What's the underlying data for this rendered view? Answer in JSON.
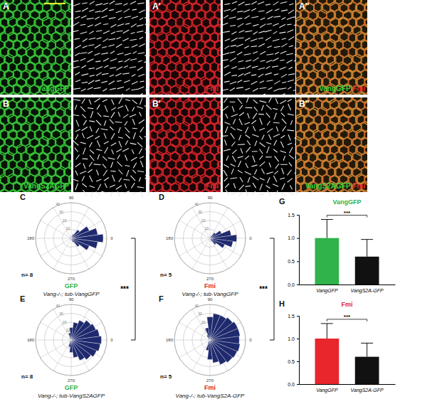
{
  "panels": [
    {
      "panel": "A",
      "type": "green",
      "channels": [
        {
          "text": "VangGFP",
          "color": "#3ccf3c"
        }
      ]
    },
    {
      "panel": "A'",
      "type": "red",
      "channels": [
        {
          "text": "Fmi",
          "color": "#e0262b"
        }
      ]
    },
    {
      "panel": "A''",
      "type": "merge",
      "channels": [
        {
          "text": "VangGFP",
          "color": "#3ccf3c"
        },
        {
          "text": "Fmi",
          "color": "#e0262b"
        }
      ]
    },
    {
      "panel": "B",
      "type": "green",
      "channels": [
        {
          "text": "VangS2AGFP",
          "color": "#3ccf3c"
        }
      ]
    },
    {
      "panel": "B'",
      "type": "red",
      "channels": [
        {
          "text": "Fmi",
          "color": "#e0262b"
        }
      ]
    },
    {
      "panel": "B''",
      "type": "merge",
      "channels": [
        {
          "text": "VangS2AGFP",
          "color": "#3ccf3c"
        },
        {
          "text": "Fmi",
          "color": "#e0262b"
        }
      ]
    }
  ],
  "chart_data": [
    {
      "type": "rose",
      "panel": "C",
      "title": "GFP",
      "subtitle": "Vang-/-; tub-VangGFP",
      "annotations": [
        "n= 8"
      ],
      "x": [
        0,
        15,
        30,
        45,
        60,
        75,
        90,
        105,
        120,
        135,
        150,
        165,
        180,
        195,
        210,
        225,
        240,
        255,
        270,
        285,
        300,
        315,
        330,
        345
      ],
      "values": [
        36,
        30,
        22,
        12,
        5,
        2,
        0,
        0,
        0,
        0,
        0,
        1,
        2,
        1,
        0,
        0,
        0,
        0,
        0,
        2,
        5,
        12,
        22,
        30
      ],
      "xlim": [
        0,
        360
      ],
      "xticks": [
        0,
        90,
        180,
        270
      ],
      "ylim": [
        0,
        40
      ],
      "yticks": [
        10,
        20,
        30,
        40
      ],
      "color": "#1f2a6e"
    },
    {
      "type": "rose",
      "panel": "D",
      "title": "Fmi",
      "subtitle": "Vang-/-; tub-VangGFP",
      "annotations": [
        "n= 5"
      ],
      "x": [
        0,
        15,
        30,
        45,
        60,
        75,
        90,
        105,
        120,
        135,
        150,
        165,
        180,
        195,
        210,
        225,
        240,
        255,
        270,
        285,
        300,
        315,
        330,
        345
      ],
      "values": [
        30,
        24,
        14,
        8,
        3,
        1,
        0,
        0,
        0,
        0,
        0,
        0,
        1,
        0,
        0,
        0,
        0,
        0,
        0,
        1,
        4,
        9,
        18,
        26
      ],
      "xlim": [
        0,
        360
      ],
      "xticks": [
        0,
        90,
        180,
        270
      ],
      "ylim": [
        0,
        40
      ],
      "yticks": [
        10,
        20,
        30,
        40
      ],
      "color": "#1f2a6e"
    },
    {
      "type": "rose",
      "panel": "E",
      "title": "GFP",
      "subtitle": "Vang-/-; tub-VangS2AGFP",
      "annotations": [
        "n= 8"
      ],
      "significance": "***",
      "x": [
        0,
        15,
        30,
        45,
        60,
        75,
        90,
        105,
        120,
        135,
        150,
        165,
        180,
        195,
        210,
        225,
        240,
        255,
        270,
        285,
        300,
        315,
        330,
        345
      ],
      "values": [
        34,
        32,
        30,
        28,
        24,
        20,
        14,
        8,
        3,
        1,
        0,
        0,
        1,
        0,
        0,
        1,
        3,
        8,
        14,
        20,
        25,
        28,
        31,
        33
      ],
      "xlim": [
        0,
        360
      ],
      "xticks": [
        0,
        90,
        180,
        270
      ],
      "ylim": [
        0,
        40
      ],
      "yticks": [
        10,
        20,
        30,
        40
      ],
      "color": "#1f2a6e"
    },
    {
      "type": "rose",
      "panel": "F",
      "title": "Fmi",
      "subtitle": "Vang-/-; tub-VangS2A-GFP",
      "annotations": [
        "n= 5"
      ],
      "significance": "***",
      "x": [
        0,
        15,
        30,
        45,
        60,
        75,
        90,
        105,
        120,
        135,
        150,
        165,
        180,
        195,
        210,
        225,
        240,
        255,
        270,
        285,
        300,
        315,
        330,
        345
      ],
      "values": [
        33,
        34,
        34,
        32,
        30,
        30,
        26,
        14,
        6,
        2,
        0,
        0,
        1,
        0,
        0,
        1,
        4,
        12,
        22,
        26,
        30,
        32,
        33,
        34
      ],
      "xlim": [
        0,
        360
      ],
      "xticks": [
        0,
        90,
        180,
        270
      ],
      "ylim": [
        0,
        40
      ],
      "yticks": [
        10,
        20,
        30,
        40
      ],
      "color": "#1f2a6e"
    },
    {
      "type": "bar",
      "panel": "G",
      "title": "VangGFP",
      "significance": "***",
      "categories": [
        "VangGFP",
        "VangS2A-GFP"
      ],
      "values": [
        1.0,
        0.6
      ],
      "errors": [
        0.4,
        0.37
      ],
      "colors": [
        "#2fb34a",
        "#111111"
      ],
      "ylim": [
        0,
        1.5
      ],
      "yticks": [
        {
          "value": 0,
          "label": "0.0"
        },
        0.5,
        {
          "value": 1,
          "label": "1.0"
        },
        1.5
      ]
    },
    {
      "type": "bar",
      "panel": "H",
      "title": "Fmi",
      "significance": "***",
      "categories": [
        "VangGFP",
        "VangS2A-GFP"
      ],
      "values": [
        1.0,
        0.6
      ],
      "errors": [
        0.33,
        0.3
      ],
      "colors": [
        "#e8262b",
        "#111111"
      ],
      "ylim": [
        0,
        1.5
      ],
      "yticks": [
        {
          "value": 0,
          "label": "0.0"
        },
        0.5,
        {
          "value": 1,
          "label": "1.0"
        },
        1.5
      ]
    }
  ]
}
